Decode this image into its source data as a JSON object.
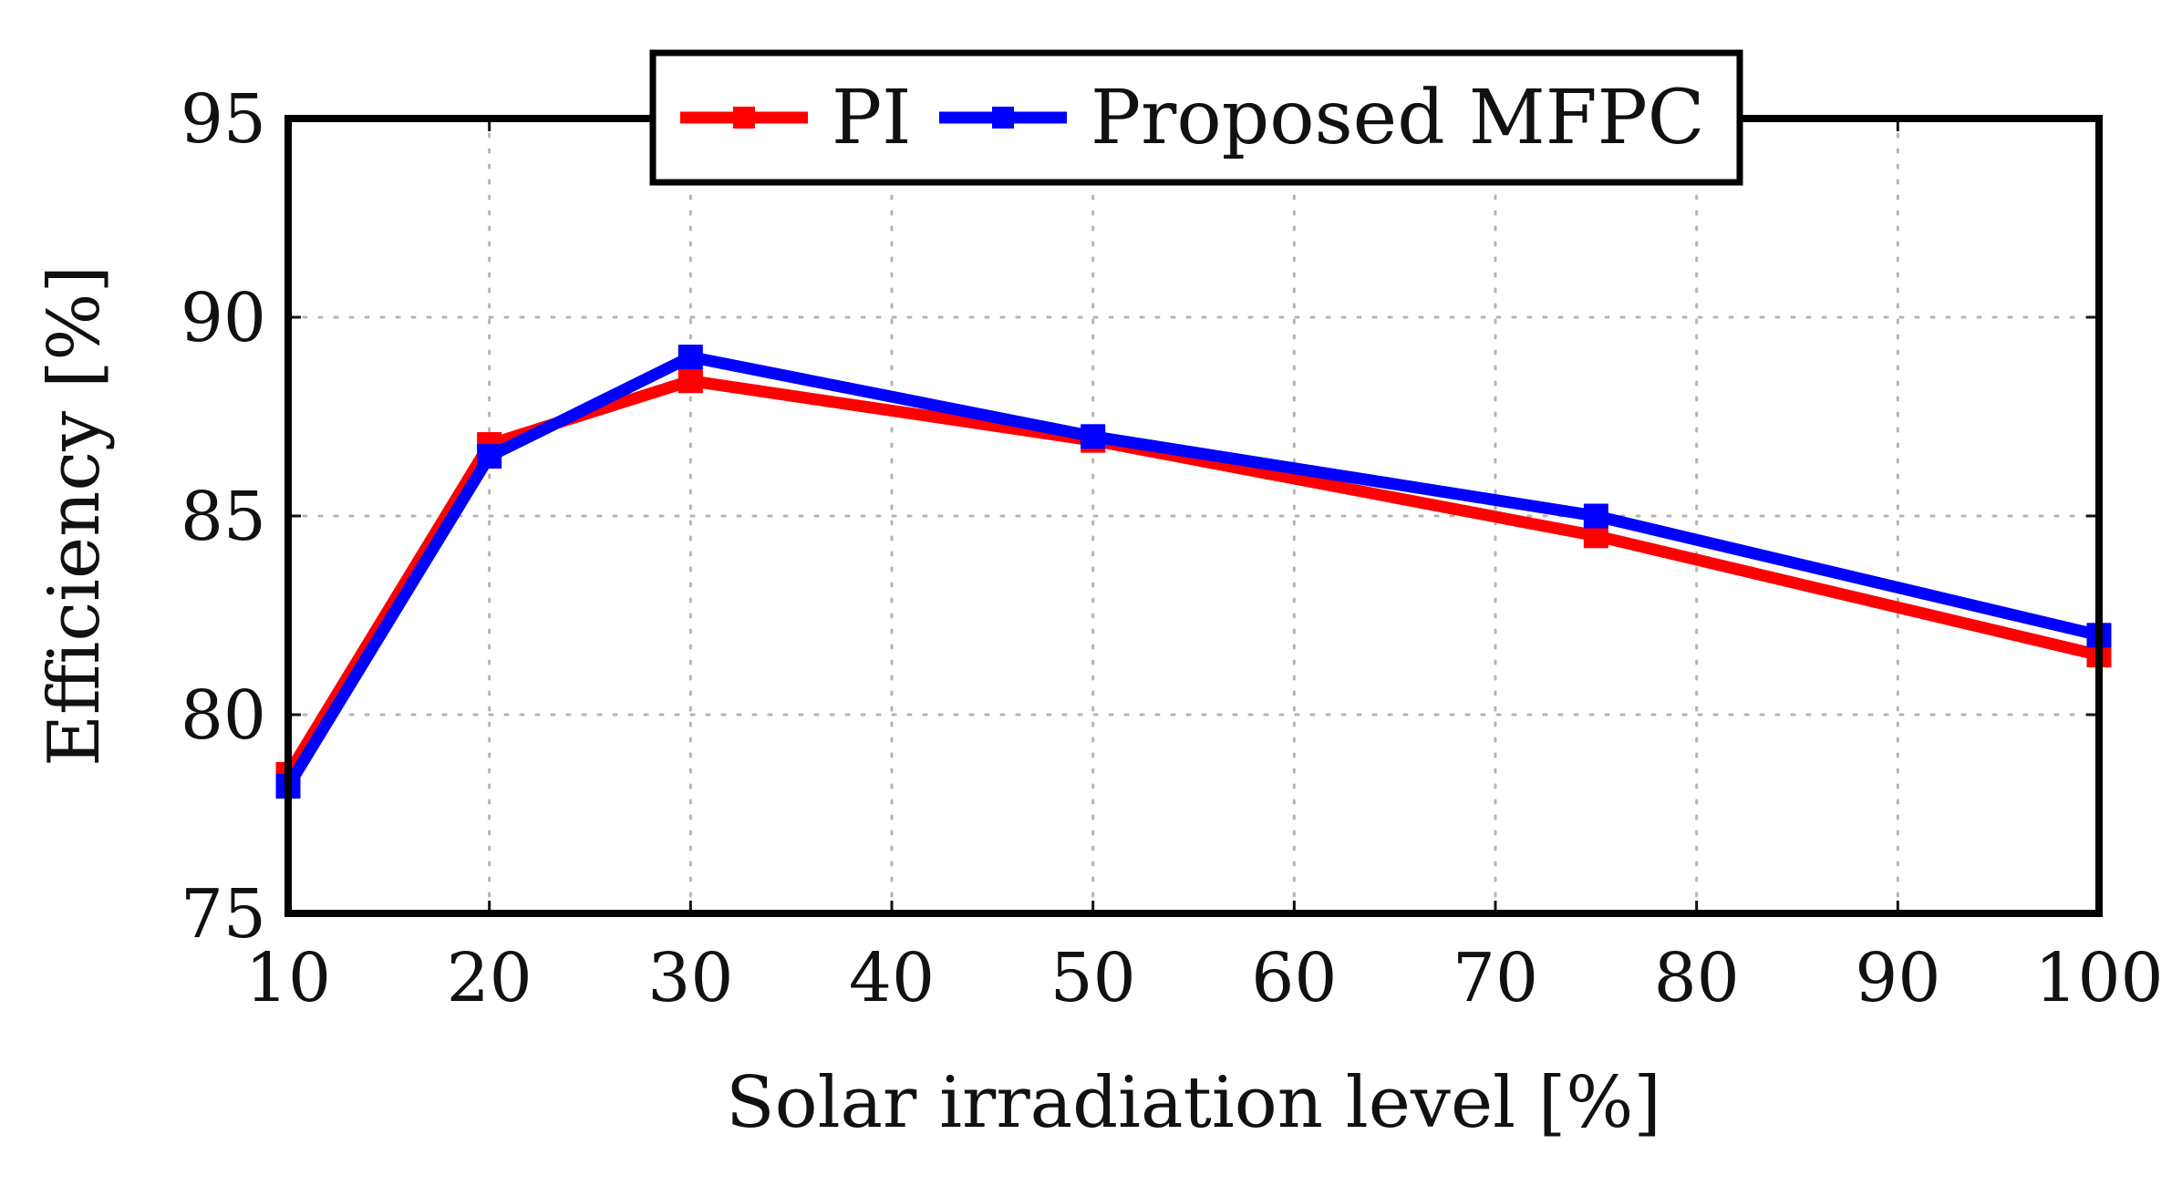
{
  "chart_data": {
    "type": "line",
    "title": "",
    "xlabel": "Solar irradiation level [%]",
    "ylabel": "Efficiency [%]",
    "xlim": [
      10,
      100
    ],
    "ylim": [
      75,
      95
    ],
    "xticks": [
      10,
      20,
      30,
      40,
      50,
      60,
      70,
      80,
      90,
      100
    ],
    "yticks": [
      75,
      80,
      85,
      90,
      95
    ],
    "xtick_labels": [
      "10",
      "20",
      "30",
      "40",
      "50",
      "60",
      "70",
      "80",
      "90",
      "100"
    ],
    "ytick_labels": [
      "75",
      "80",
      "85",
      "90",
      "95"
    ],
    "grid": true,
    "legend_position": "top-center",
    "series": [
      {
        "name": "PI",
        "color": "#ff0000",
        "marker": "square",
        "x": [
          10,
          20,
          30,
          50,
          75,
          100
        ],
        "y": [
          78.5,
          86.8,
          88.4,
          86.9,
          84.5,
          81.5
        ]
      },
      {
        "name": "Proposed MFPC",
        "color": "#0000ff",
        "marker": "square",
        "x": [
          10,
          20,
          30,
          50,
          75,
          100
        ],
        "y": [
          78.2,
          86.5,
          89.0,
          87.0,
          85.0,
          82.0
        ]
      }
    ]
  }
}
